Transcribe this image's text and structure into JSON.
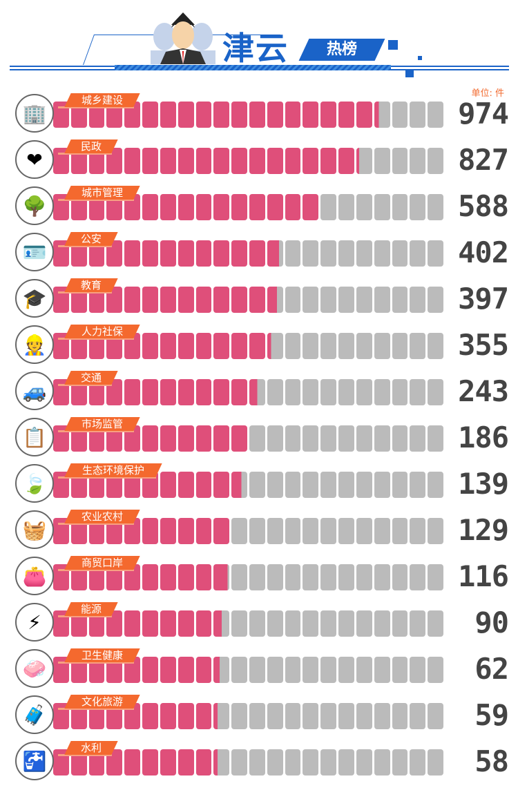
{
  "header": {
    "title": "津云",
    "subtitle": "热榜",
    "unit": "单位: 件"
  },
  "colors": {
    "filled": "#df4f7a",
    "empty": "#bbbbbb",
    "tag": "#f4692e",
    "accent": "#1a63c8"
  },
  "chart_data": {
    "type": "bar",
    "title": "津云热榜",
    "unit": "件",
    "categories": [
      "城乡建设",
      "民政",
      "城市管理",
      "公安",
      "教育",
      "人力社保",
      "交通",
      "市场监管",
      "生态环境保护",
      "农业农村",
      "商贸口岸",
      "能源",
      "卫生健康",
      "文化旅游",
      "水利"
    ],
    "values": [
      974,
      827,
      588,
      402,
      397,
      355,
      243,
      186,
      139,
      129,
      116,
      90,
      62,
      59,
      58
    ],
    "fill_fraction": [
      0.83,
      0.78,
      0.68,
      0.575,
      0.57,
      0.555,
      0.52,
      0.5,
      0.48,
      0.45,
      0.445,
      0.43,
      0.425,
      0.42,
      0.42
    ],
    "icons": [
      "buildings-icon",
      "heart-hands-icon",
      "tree-icon",
      "id-badge-icon",
      "graduation-cap-icon",
      "worker-icon",
      "car-icon",
      "clipboard-magnifier-icon",
      "leaves-icon",
      "vegetable-basket-icon",
      "wallet-icon",
      "wind-turbine-icon",
      "washing-hands-icon",
      "suitcase-icon",
      "water-tap-icon"
    ]
  }
}
